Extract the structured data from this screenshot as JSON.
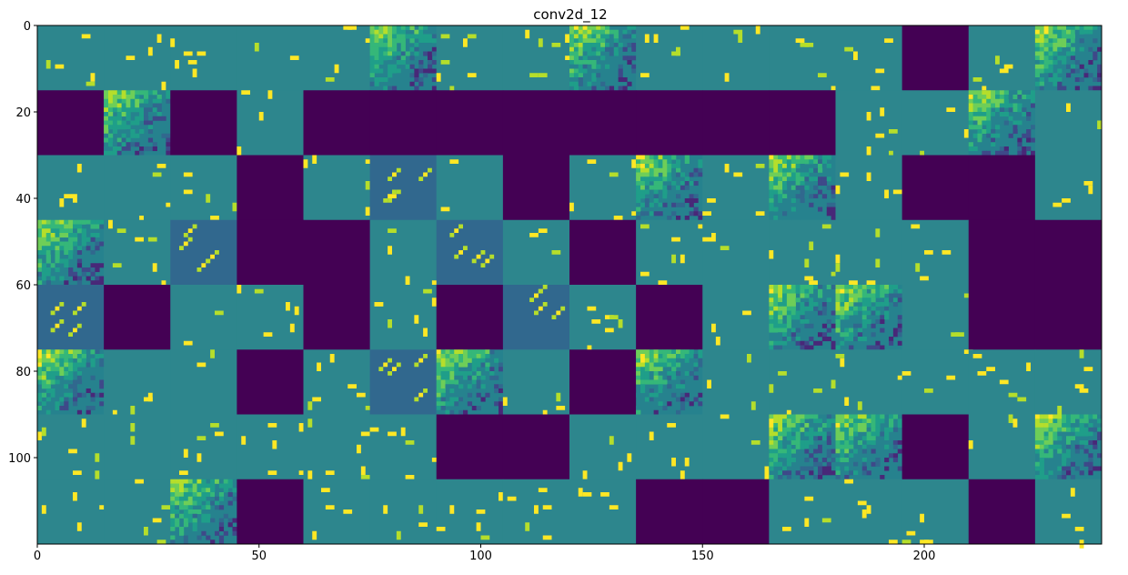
{
  "chart_data": {
    "type": "heatmap",
    "title": "conv2d_12",
    "xlabel": "",
    "ylabel": "",
    "colormap": "viridis",
    "grid": false,
    "xlim": [
      0,
      240
    ],
    "ylim": [
      120,
      0
    ],
    "x_ticks": [
      0,
      50,
      100,
      150,
      200
    ],
    "y_ticks": [
      0,
      20,
      40,
      60,
      80,
      100
    ],
    "tile_size": 15,
    "tile_grid": {
      "rows": 8,
      "cols": 16
    },
    "tile_types": {
      "P": "dead channel (all minimum / dark purple)",
      "T": "mostly mid value (teal) with sparse bright speckles",
      "A": "structured activation (yellow/green texture)",
      "D": "mid value with diagonal streak highlights"
    },
    "tiles": [
      "TTTTTATTATTTTPTA",
      "PAPTPPPPPPPPTTAT",
      "TTTPTDTPTATATPPT",
      "ATDPPTDTPTTTTTPP",
      "DPTTPTPDTPTAATPP",
      "ATTPTDATPATTTTTT",
      "TTTTTTPPTTTAAPTA",
      "TTAPTTTTTPPTTTPT"
    ],
    "colors": {
      "P": "#440154",
      "T": "#2d868d",
      "A": "#5ec962",
      "D": "#31688e",
      "yellow": "#fde725"
    }
  }
}
